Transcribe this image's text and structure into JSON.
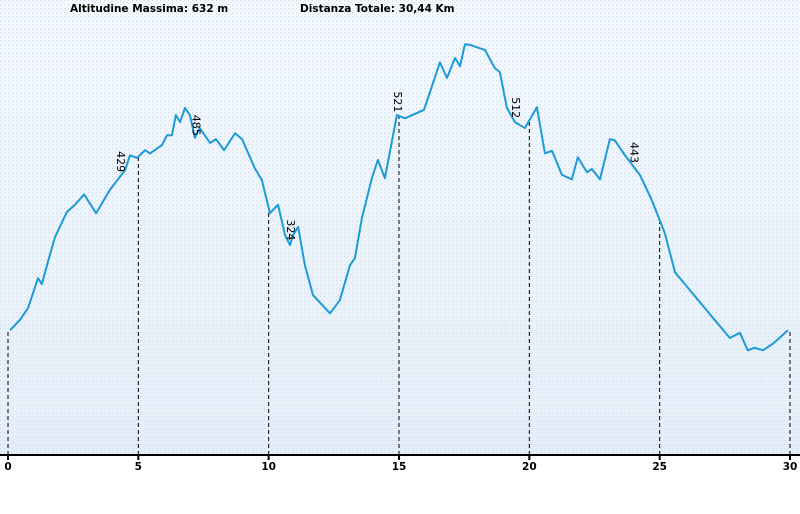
{
  "chart_data": {
    "type": "line",
    "header": [
      "Altitudine Massima: 632 m",
      "Distanza Totale: 30,44 Km"
    ],
    "xlim": [
      0,
      30
    ],
    "xticks": [
      0,
      5,
      10,
      15,
      20,
      25,
      30
    ],
    "ylim": [
      0,
      700
    ],
    "color": "#1e9ad6",
    "x": [
      0.08,
      0.46,
      0.77,
      1.15,
      1.3,
      1.53,
      1.8,
      2.26,
      2.57,
      2.92,
      3.38,
      3.91,
      4.49,
      4.68,
      4.95,
      5.26,
      5.45,
      5.91,
      6.1,
      6.29,
      6.44,
      6.6,
      6.79,
      6.98,
      7.17,
      7.36,
      7.75,
      7.98,
      8.29,
      8.71,
      8.98,
      9.47,
      9.74,
      10.05,
      10.36,
      10.63,
      10.82,
      10.93,
      11.13,
      11.39,
      11.7,
      12.35,
      12.73,
      13.12,
      13.31,
      13.58,
      13.96,
      14.19,
      14.46,
      14.92,
      15.23,
      15.96,
      16.57,
      16.84,
      17.15,
      17.34,
      17.53,
      17.72,
      18.3,
      18.68,
      18.87,
      19.14,
      19.45,
      19.83,
      20.29,
      20.6,
      20.87,
      21.25,
      21.63,
      21.86,
      22.21,
      22.4,
      22.71,
      23.09,
      23.28,
      23.67,
      24.24,
      24.7,
      25.2,
      25.59,
      27.69,
      28.08,
      28.38,
      28.65,
      28.96,
      29.34,
      29.92
    ],
    "values": [
      192,
      208,
      226,
      272,
      263,
      297,
      335,
      374,
      385,
      401,
      372,
      408,
      438,
      461,
      457,
      469,
      464,
      477,
      492,
      492,
      523,
      512,
      534,
      523,
      488,
      503,
      480,
      486,
      469,
      495,
      486,
      441,
      423,
      372,
      385,
      338,
      323,
      338,
      351,
      292,
      246,
      218,
      238,
      292,
      303,
      365,
      426,
      454,
      426,
      523,
      518,
      531,
      604,
      580,
      611,
      598,
      632,
      631,
      623,
      595,
      589,
      534,
      512,
      503,
      535,
      464,
      468,
      431,
      424,
      458,
      435,
      440,
      424,
      486,
      484,
      461,
      431,
      392,
      341,
      281,
      180,
      188,
      161,
      165,
      161,
      171,
      192
    ],
    "annotations": [
      {
        "x": 4.3,
        "value": 429
      },
      {
        "x": 7.2,
        "value": 485
      },
      {
        "x": 10.82,
        "value": 324
      },
      {
        "x": 14.92,
        "value": 521
      },
      {
        "x": 19.45,
        "value": 512
      },
      {
        "x": 24.0,
        "value": 443
      }
    ]
  }
}
